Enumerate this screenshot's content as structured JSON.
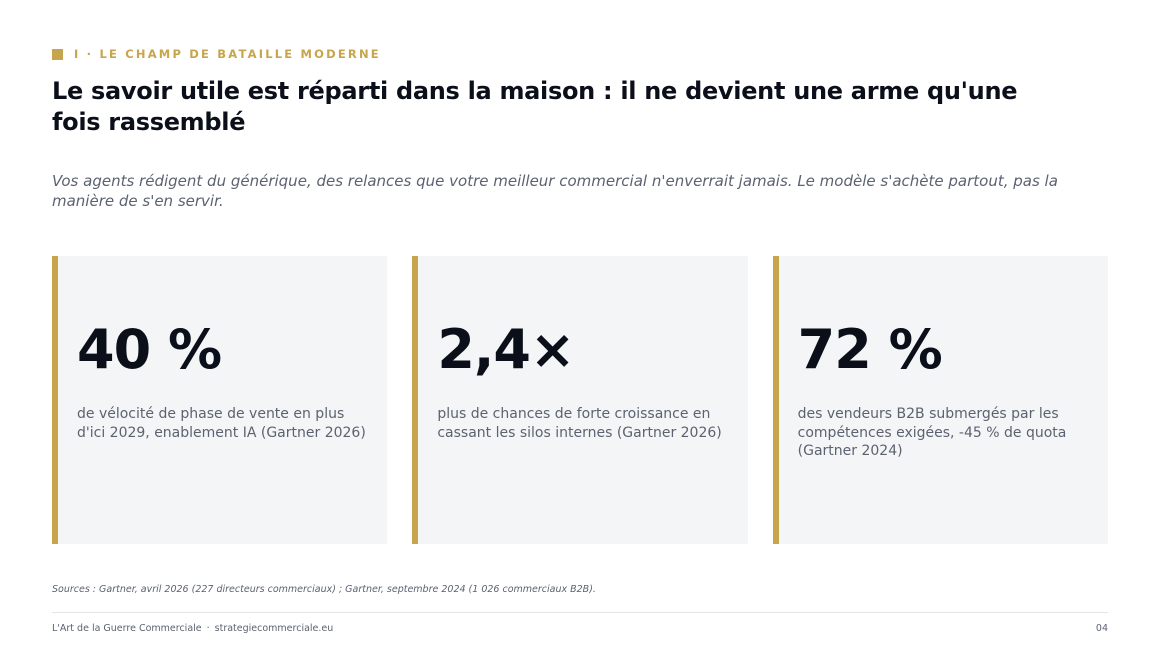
{
  "section": {
    "label": "I · LE CHAMP DE BATAILLE MODERNE"
  },
  "title": "Le savoir utile est réparti dans la maison : il ne devient une arme qu'une fois rassemblé",
  "subtitle": "Vos agents rédigent du générique, des relances que votre meilleur commercial n'enverrait jamais. Le modèle s'achète partout, pas la manière de s'en servir.",
  "stats": [
    {
      "value": "40 %",
      "description": "de vélocité de phase de vente en plus d'ici 2029, enablement IA (Gartner 2026)"
    },
    {
      "value": "2,4×",
      "description": "plus de chances de forte croissance en cassant les silos internes (Gartner 2026)"
    },
    {
      "value": "72 %",
      "description": "des vendeurs B2B submergés par les compétences exigées, -45 % de quota (Gartner 2024)"
    }
  ],
  "sources": "Sources : Gartner, avril 2026 (227 directeurs commerciaux) ; Gartner, septembre 2024 (1 026 commerciaux B2B).",
  "footer": {
    "brand": "L'Art de la Guerre Commerciale",
    "separator": "·",
    "site": "strategiecommerciale.eu",
    "page_number": "04"
  },
  "colors": {
    "accent": "#c7a54c",
    "heading": "#0b0f1a",
    "muted_text": "#5b6270",
    "card_background": "#f4f5f7"
  }
}
